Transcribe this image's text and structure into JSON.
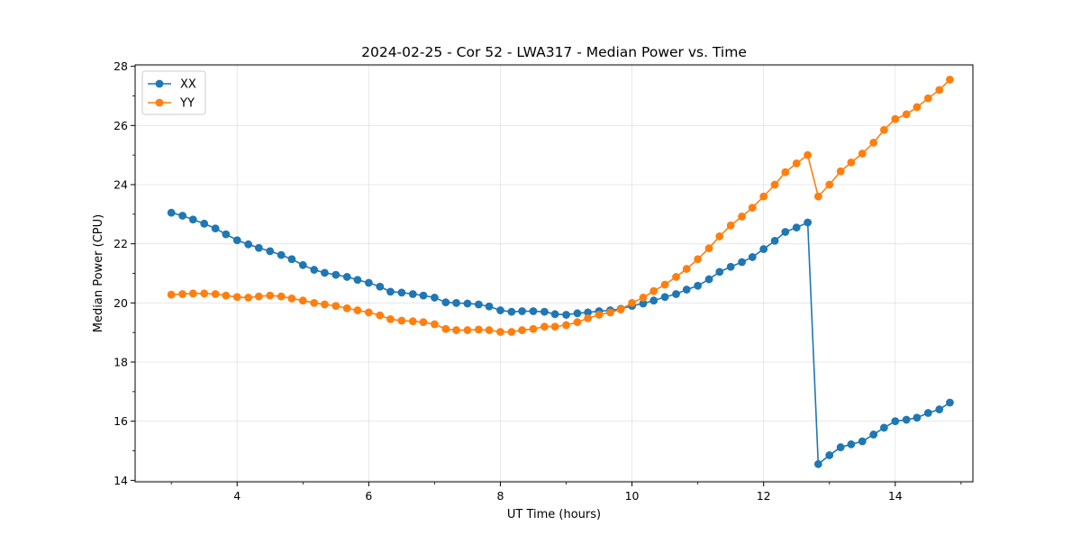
{
  "chart_data": {
    "type": "line",
    "title": "2024-02-25 - Cor 52 - LWA317 - Median Power vs. Time",
    "xlabel": "UT Time (hours)",
    "ylabel": "Median Power (CPU)",
    "xlim": [
      2.45,
      15.18
    ],
    "ylim": [
      13.95,
      28.05
    ],
    "xticks": [
      4,
      6,
      8,
      10,
      12,
      14
    ],
    "yticks": [
      14,
      16,
      18,
      20,
      22,
      24,
      26,
      28
    ],
    "grid": true,
    "legend_position": "top-left",
    "x": [
      3.0,
      3.17,
      3.33,
      3.5,
      3.67,
      3.83,
      4.0,
      4.17,
      4.33,
      4.5,
      4.67,
      4.83,
      5.0,
      5.17,
      5.33,
      5.5,
      5.67,
      5.83,
      6.0,
      6.17,
      6.33,
      6.5,
      6.67,
      6.83,
      7.0,
      7.17,
      7.33,
      7.5,
      7.67,
      7.83,
      8.0,
      8.17,
      8.33,
      8.5,
      8.67,
      8.83,
      9.0,
      9.17,
      9.33,
      9.5,
      9.67,
      9.83,
      10.0,
      10.17,
      10.33,
      10.5,
      10.67,
      10.83,
      11.0,
      11.17,
      11.33,
      11.5,
      11.67,
      11.83,
      12.0,
      12.17,
      12.33,
      12.5,
      12.67,
      12.83,
      13.0,
      13.17,
      13.33,
      13.5,
      13.67,
      13.83,
      14.0,
      14.17,
      14.33,
      14.5,
      14.67,
      14.83
    ],
    "series": [
      {
        "name": "XX",
        "color": "#1f77b4",
        "values": [
          23.05,
          22.95,
          22.82,
          22.68,
          22.52,
          22.32,
          22.12,
          21.98,
          21.86,
          21.75,
          21.62,
          21.48,
          21.28,
          21.12,
          21.02,
          20.95,
          20.88,
          20.78,
          20.68,
          20.55,
          20.38,
          20.35,
          20.3,
          20.25,
          20.18,
          20.02,
          20.0,
          19.98,
          19.95,
          19.88,
          19.75,
          19.7,
          19.72,
          19.72,
          19.7,
          19.62,
          19.6,
          19.65,
          19.68,
          19.72,
          19.75,
          19.8,
          19.9,
          19.98,
          20.08,
          20.2,
          20.3,
          20.45,
          20.58,
          20.8,
          21.05,
          21.22,
          21.38,
          21.55,
          21.82,
          22.1,
          22.4,
          22.55,
          22.72,
          14.55,
          14.85,
          15.12,
          15.22,
          15.32,
          15.55,
          15.78,
          16.0,
          16.05,
          16.12,
          16.28,
          16.4,
          16.63
        ]
      },
      {
        "name": "YY",
        "color": "#ff7f0e",
        "values": [
          20.28,
          20.3,
          20.32,
          20.32,
          20.3,
          20.25,
          20.2,
          20.18,
          20.22,
          20.25,
          20.22,
          20.15,
          20.08,
          20.0,
          19.95,
          19.9,
          19.82,
          19.75,
          19.68,
          19.58,
          19.45,
          19.4,
          19.38,
          19.35,
          19.28,
          19.12,
          19.08,
          19.08,
          19.1,
          19.08,
          19.02,
          19.02,
          19.08,
          19.12,
          19.2,
          19.2,
          19.25,
          19.35,
          19.48,
          19.6,
          19.68,
          19.78,
          20.0,
          20.18,
          20.4,
          20.62,
          20.88,
          21.15,
          21.48,
          21.85,
          22.25,
          22.62,
          22.92,
          23.22,
          23.6,
          24.0,
          24.42,
          24.72,
          25.0,
          23.6,
          24.0,
          24.45,
          24.75,
          25.05,
          25.42,
          25.85,
          26.22,
          26.38,
          26.62,
          26.92,
          27.2,
          27.55
        ]
      }
    ]
  }
}
